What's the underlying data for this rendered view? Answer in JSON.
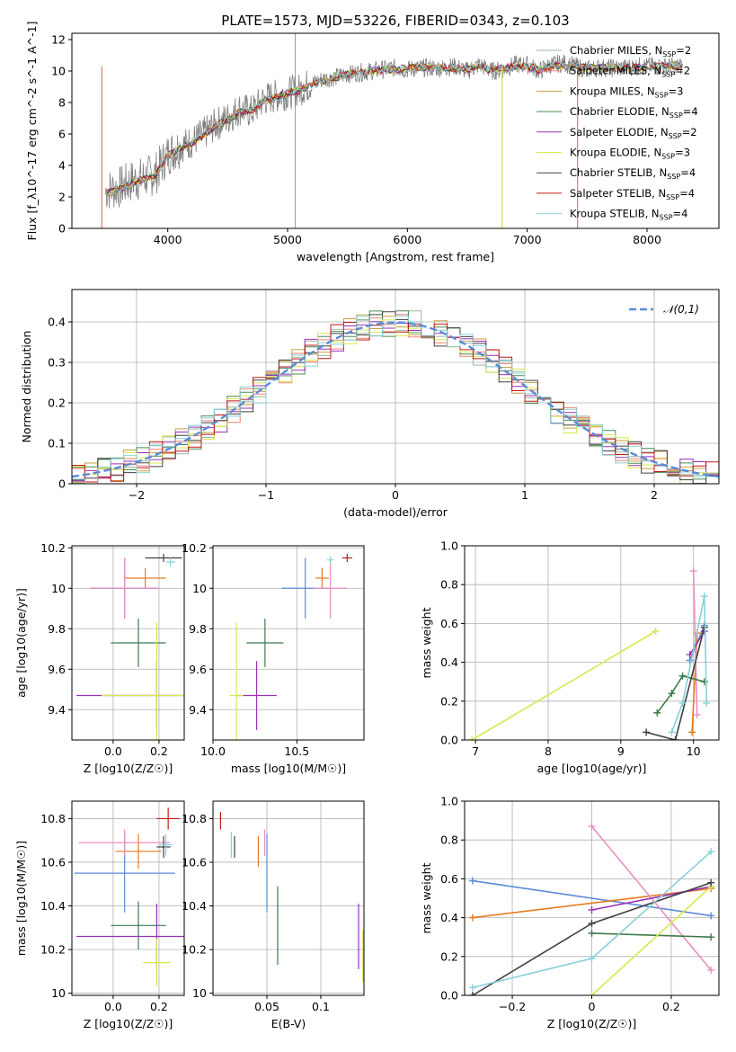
{
  "figure_title": "PLATE=1573, MJD=53226, FIBERID=0343, z=0.103",
  "models": [
    {
      "name": "Chabrier MILES",
      "nssp": "=2",
      "color": "#9ab9a0"
    },
    {
      "name": "Salpeter MILES",
      "nssp": "=2",
      "color": "#f08070"
    },
    {
      "name": "Kroupa MILES",
      "nssp": "=3",
      "color": "#c8a040"
    },
    {
      "name": "Chabrier ELODIE",
      "nssp": "=4",
      "color": "#4a8a58"
    },
    {
      "name": "Salpeter ELODIE",
      "nssp": "=2",
      "color": "#9a30b8"
    },
    {
      "name": "Kroupa ELODIE",
      "nssp": "=3",
      "color": "#d8e84c"
    },
    {
      "name": "Chabrier STELIB",
      "nssp": "=4",
      "color": "#404040"
    },
    {
      "name": "Salpeter STELIB",
      "nssp": "=4",
      "color": "#c01818"
    },
    {
      "name": "Kroupa STELIB",
      "nssp": "=4",
      "color": "#88d0d8"
    }
  ],
  "chart_data": [
    {
      "id": "spectrum",
      "type": "line",
      "xlabel": "wavelength [Angstrom, rest frame]",
      "ylabel": "Flux [f_λ10^-17 erg cm^-2 s^-1 A^-1]",
      "xlim": [
        3200,
        8600
      ],
      "ylim": [
        0,
        12.4
      ],
      "xticks": [
        4000,
        5000,
        6000,
        7000,
        8000
      ],
      "yticks": [
        0,
        2,
        4,
        6,
        8,
        10,
        12
      ],
      "legend": "right",
      "data_color": "#808080",
      "data_x": [
        3480,
        3600,
        3700,
        3800,
        3900,
        4000,
        4100,
        4200,
        4300,
        4400,
        4500,
        4600,
        4700,
        4800,
        4900,
        5000,
        5100,
        5200,
        5300,
        5400,
        5500,
        5600,
        5700,
        5800,
        5900,
        6000,
        6100,
        6200,
        6300,
        6400,
        6500,
        6600,
        6700,
        6800,
        6900,
        7000,
        7100,
        7200,
        7300,
        7400,
        7500,
        7600,
        7700,
        7800,
        7900,
        8000,
        8100,
        8200,
        8300
      ],
      "data_y": [
        2.4,
        2.6,
        3.0,
        3.2,
        3.5,
        4.7,
        5.2,
        5.5,
        6.0,
        6.6,
        7.0,
        7.6,
        7.4,
        8.2,
        8.4,
        8.6,
        8.8,
        9.2,
        9.5,
        9.6,
        9.8,
        9.9,
        10.0,
        10.1,
        10.2,
        10.1,
        10.2,
        10.2,
        10.2,
        10.3,
        10.0,
        10.4,
        10.0,
        10.1,
        10.4,
        10.4,
        10.0,
        10.4,
        10.5,
        10.3,
        10.1,
        10.2,
        10.2,
        10.2,
        10.3,
        10.3,
        10.3,
        10.3,
        10.3
      ],
      "model_x": [
        3480,
        3600,
        3700,
        3800,
        3900,
        4000,
        4100,
        4200,
        4300,
        4400,
        4500,
        4600,
        4700,
        4800,
        4900,
        5000,
        5100,
        5200,
        5300,
        5400,
        5500,
        5600,
        5700,
        5800,
        5900,
        6000,
        6100,
        6200,
        6300,
        6400,
        6500,
        6600,
        6700,
        6800,
        6900,
        7000,
        7100,
        7200,
        7300,
        7400,
        7500,
        7600,
        7700,
        7800,
        7900,
        8000,
        8100,
        8200,
        8300
      ],
      "model_y": [
        2.2,
        2.5,
        2.9,
        3.1,
        3.4,
        4.6,
        5.1,
        5.4,
        5.9,
        6.5,
        6.9,
        7.4,
        7.5,
        8.1,
        8.3,
        8.6,
        8.8,
        9.1,
        9.4,
        9.6,
        9.8,
        9.9,
        10.0,
        10.1,
        10.1,
        10.2,
        10.2,
        10.2,
        10.2,
        10.2,
        10.1,
        10.3,
        10.1,
        10.2,
        10.3,
        10.3,
        10.1,
        10.3,
        10.4,
        10.3,
        10.2,
        10.2,
        10.2,
        10.2,
        10.2,
        10.3,
        10.3,
        10.3,
        10.3
      ],
      "vertical_drops": [
        {
          "x": 3450,
          "series": 1
        },
        {
          "x": 6790,
          "series": 5
        },
        {
          "x": 7420,
          "series": 1
        }
      ]
    },
    {
      "id": "residuals",
      "type": "histogram",
      "xlabel": "(data-model)/error",
      "ylabel": "Normed distribution",
      "xlim": [
        -2.5,
        2.5
      ],
      "ylim": [
        0,
        0.48
      ],
      "xticks": [
        -2,
        -1,
        0,
        1,
        2
      ],
      "yticks": [
        0,
        0.1,
        0.2,
        0.3,
        0.4
      ],
      "legend": "top-right",
      "gaussian_label": "𝒩(0,1)",
      "gaussian_color": "#5b8bd6",
      "bin_width": 0.1
    },
    {
      "id": "age_vs_Z",
      "type": "errorbar",
      "xlabel": "Z [log10(Z/Z☉)]",
      "ylabel": "age  [log10(age/yr)]",
      "xlim": [
        -0.18,
        0.31
      ],
      "ylim": [
        9.25,
        10.21
      ],
      "xticks": [
        0.0,
        0.2
      ],
      "yticks": [
        9.4,
        9.6,
        9.8,
        10.0,
        10.2
      ],
      "points": [
        {
          "x": 0.05,
          "y": 10.0,
          "xerr": 0.15,
          "yerr": 0.15,
          "color": "#5b8bd6"
        },
        {
          "x": 0.14,
          "y": 10.05,
          "xerr": 0.09,
          "yerr": 0.05,
          "color": "#e57c22"
        },
        {
          "x": 0.05,
          "y": 10.0,
          "xerr": 0.15,
          "yerr": 0.15,
          "color": "#e88fc2"
        },
        {
          "x": 0.11,
          "y": 9.73,
          "xerr": 0.12,
          "yerr": 0.12,
          "color": "#3f7a4a"
        },
        {
          "x": 0.19,
          "y": 9.47,
          "xerr": 0.35,
          "yerr": 0.17,
          "color": "#9a30b8"
        },
        {
          "x": 0.19,
          "y": 9.47,
          "xerr": 0.24,
          "yerr": 0.36,
          "color": "#d8e84c"
        },
        {
          "x": 0.22,
          "y": 10.15,
          "xerr": 0.08,
          "yerr": 0.02,
          "color": "#404040"
        },
        {
          "x": 0.25,
          "y": 10.13,
          "xerr": 0.02,
          "yerr": 0.02,
          "color": "#88d0d8"
        }
      ]
    },
    {
      "id": "age_vs_mass",
      "type": "errorbar",
      "xlabel": "mass [log10(M/M☉)]",
      "ylabel": "",
      "xlim": [
        10.0,
        10.9
      ],
      "ylim": [
        9.25,
        10.21
      ],
      "xticks": [
        10.0,
        10.5
      ],
      "yticks": [
        9.4,
        9.6,
        9.8,
        10.0,
        10.2
      ],
      "points": [
        {
          "x": 10.55,
          "y": 10.0,
          "xerr": 0.14,
          "yerr": 0.15,
          "color": "#5b8bd6"
        },
        {
          "x": 10.65,
          "y": 10.05,
          "xerr": 0.04,
          "yerr": 0.05,
          "color": "#e57c22"
        },
        {
          "x": 10.7,
          "y": 10.0,
          "xerr": 0.1,
          "yerr": 0.15,
          "color": "#e88fc2"
        },
        {
          "x": 10.31,
          "y": 9.73,
          "xerr": 0.11,
          "yerr": 0.12,
          "color": "#3f7a4a"
        },
        {
          "x": 10.26,
          "y": 9.47,
          "xerr": 0.12,
          "yerr": 0.17,
          "color": "#9a30b8"
        },
        {
          "x": 10.14,
          "y": 9.47,
          "xerr": 0.04,
          "yerr": 0.36,
          "color": "#d8e84c"
        },
        {
          "x": 10.8,
          "y": 10.15,
          "xerr": 0.03,
          "yerr": 0.02,
          "color": "#c01818"
        },
        {
          "x": 10.7,
          "y": 10.14,
          "xerr": 0.02,
          "yerr": 0.02,
          "color": "#88d0d8"
        }
      ]
    },
    {
      "id": "mw_vs_age",
      "type": "line",
      "xlabel": "age  [log10(age/yr)]",
      "ylabel": "mass weight",
      "xlim": [
        6.85,
        10.35
      ],
      "ylim": [
        0.0,
        1.0
      ],
      "xticks": [
        7,
        8,
        9,
        10
      ],
      "yticks": [
        0.0,
        0.2,
        0.4,
        0.6,
        0.8,
        1.0
      ],
      "series": [
        {
          "x": [
            9.95,
            10.15
          ],
          "y": [
            0.41,
            0.59
          ],
          "color": "#5b8bd6"
        },
        {
          "x": [
            9.98,
            10.05
          ],
          "y": [
            0.04,
            0.55
          ],
          "color": "#e57c22"
        },
        {
          "x": [
            10.0,
            10.05
          ],
          "y": [
            0.87,
            0.13
          ],
          "color": "#e88fc2"
        },
        {
          "x": [
            9.5,
            9.7,
            9.85,
            10.15
          ],
          "y": [
            0.14,
            0.24,
            0.33,
            0.3
          ],
          "color": "#3f7a4a"
        },
        {
          "x": [
            9.95,
            10.15
          ],
          "y": [
            0.44,
            0.56
          ],
          "color": "#9a30b8"
        },
        {
          "x": [
            6.95,
            9.48
          ],
          "y": [
            0.0,
            0.56
          ],
          "color": "#d8e84c"
        },
        {
          "x": [
            9.35,
            9.75,
            10.15
          ],
          "y": [
            0.04,
            0.0,
            0.58
          ],
          "color": "#404040"
        },
        {
          "x": [
            9.7,
            9.85,
            10.15,
            10.18
          ],
          "y": [
            0.04,
            0.19,
            0.74,
            0.19
          ],
          "color": "#88d0d8"
        }
      ]
    },
    {
      "id": "mass_vs_Z",
      "type": "errorbar",
      "xlabel": "Z [log10(Z/Z☉)]",
      "ylabel": "mass [log10(M/M☉)]",
      "xlim": [
        -0.18,
        0.31
      ],
      "ylim": [
        9.99,
        10.88
      ],
      "xticks": [
        0.0,
        0.2
      ],
      "yticks": [
        10.0,
        10.2,
        10.4,
        10.6,
        10.8
      ],
      "points": [
        {
          "x": 0.05,
          "y": 10.55,
          "xerr": 0.22,
          "yerr": 0.18,
          "color": "#5b8bd6"
        },
        {
          "x": 0.11,
          "y": 10.65,
          "xerr": 0.1,
          "yerr": 0.08,
          "color": "#e57c22"
        },
        {
          "x": 0.05,
          "y": 10.69,
          "xerr": 0.2,
          "yerr": 0.06,
          "color": "#e88fc2"
        },
        {
          "x": 0.11,
          "y": 10.31,
          "xerr": 0.12,
          "yerr": 0.11,
          "color": "#3f7a4a"
        },
        {
          "x": 0.19,
          "y": 10.26,
          "xerr": 0.35,
          "yerr": 0.15,
          "color": "#9a30b8"
        },
        {
          "x": 0.19,
          "y": 10.14,
          "xerr": 0.06,
          "yerr": 0.11,
          "color": "#d8e84c"
        },
        {
          "x": 0.22,
          "y": 10.67,
          "xerr": 0.03,
          "yerr": 0.05,
          "color": "#404040"
        },
        {
          "x": 0.24,
          "y": 10.8,
          "xerr": 0.05,
          "yerr": 0.05,
          "color": "#c01818"
        },
        {
          "x": 0.23,
          "y": 10.68,
          "xerr": 0.03,
          "yerr": 0.05,
          "color": "#88d0d8"
        }
      ]
    },
    {
      "id": "mass_vs_ebv",
      "type": "errorbar",
      "xlabel": "E(B-V)",
      "ylabel": "",
      "xlim": [
        0.0,
        0.14
      ],
      "ylim": [
        9.99,
        10.88
      ],
      "xticks": [
        0.05,
        0.1
      ],
      "yticks": [
        10.0,
        10.2,
        10.4,
        10.6,
        10.8
      ],
      "points": [
        {
          "x": 0.05,
          "y": 10.55,
          "xerr": 0,
          "yerr": 0.18,
          "color": "#5b8bd6"
        },
        {
          "x": 0.042,
          "y": 10.65,
          "xerr": 0,
          "yerr": 0.07,
          "color": "#e57c22"
        },
        {
          "x": 0.048,
          "y": 10.69,
          "xerr": 0,
          "yerr": 0.06,
          "color": "#e88fc2"
        },
        {
          "x": 0.06,
          "y": 10.31,
          "xerr": 0,
          "yerr": 0.18,
          "color": "#3f7a4a"
        },
        {
          "x": 0.135,
          "y": 10.26,
          "xerr": 0,
          "yerr": 0.15,
          "color": "#9a30b8"
        },
        {
          "x": 0.139,
          "y": 10.17,
          "xerr": 0,
          "yerr": 0.12,
          "color": "#d8e84c"
        },
        {
          "x": 0.02,
          "y": 10.67,
          "xerr": 0,
          "yerr": 0.05,
          "color": "#404040"
        },
        {
          "x": 0.007,
          "y": 10.79,
          "xerr": 0,
          "yerr": 0.04,
          "color": "#c01818"
        },
        {
          "x": 0.017,
          "y": 10.68,
          "xerr": 0,
          "yerr": 0.06,
          "color": "#88d0d8"
        }
      ]
    },
    {
      "id": "mw_vs_Z",
      "type": "line",
      "xlabel": "Z [log10(Z/Z☉)]",
      "ylabel": "mass weight",
      "xlim": [
        -0.32,
        0.32
      ],
      "ylim": [
        0.0,
        1.0
      ],
      "xticks": [
        -0.2,
        0.0,
        0.2
      ],
      "yticks": [
        0.0,
        0.2,
        0.4,
        0.6,
        0.8,
        1.0
      ],
      "series": [
        {
          "x": [
            -0.3,
            0.3
          ],
          "y": [
            0.59,
            0.41
          ],
          "color": "#5b8bd6"
        },
        {
          "x": [
            -0.3,
            0.3
          ],
          "y": [
            0.4,
            0.55
          ],
          "color": "#e57c22"
        },
        {
          "x": [
            0.0,
            0.3
          ],
          "y": [
            0.87,
            0.13
          ],
          "color": "#e88fc2"
        },
        {
          "x": [
            0.0,
            0.3
          ],
          "y": [
            0.32,
            0.3
          ],
          "color": "#3f7a4a"
        },
        {
          "x": [
            0.0,
            0.3
          ],
          "y": [
            0.44,
            0.56
          ],
          "color": "#9a30b8"
        },
        {
          "x": [
            0.0,
            0.3
          ],
          "y": [
            0.0,
            0.56
          ],
          "color": "#d8e84c"
        },
        {
          "x": [
            -0.3,
            0.0,
            0.3
          ],
          "y": [
            0.0,
            0.37,
            0.58
          ],
          "color": "#404040"
        },
        {
          "x": [
            -0.3,
            0.0,
            0.3
          ],
          "y": [
            0.04,
            0.19,
            0.74
          ],
          "color": "#88d0d8"
        }
      ]
    }
  ]
}
